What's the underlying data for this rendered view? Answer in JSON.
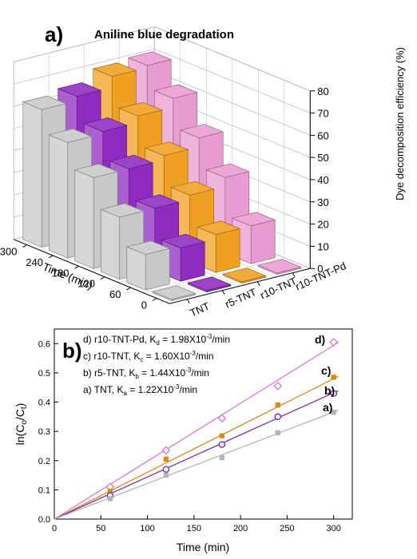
{
  "chart_data": [
    {
      "panel": "a)",
      "type": "bar",
      "title": "Aniline blue degradation",
      "zlabel": "Dye decomposition efficiency (%)",
      "xlabel": "Time (min)",
      "categories": [
        "0",
        "60",
        "120",
        "180",
        "240",
        "300"
      ],
      "zlim": [
        0,
        80
      ],
      "zticks": [
        "0",
        "10",
        "20",
        "30",
        "40",
        "50",
        "60",
        "70",
        "80"
      ],
      "series": [
        {
          "name": "TNT",
          "color": "#c8c8c8",
          "values": [
            0,
            16,
            28,
            41,
            52,
            62
          ]
        },
        {
          "name": "r5-TNT",
          "color": "#8f2bc0",
          "values": [
            0,
            15,
            28,
            41,
            53,
            64
          ]
        },
        {
          "name": "r10-TNT",
          "color": "#f0a020",
          "values": [
            0,
            17,
            30,
            43,
            56,
            69
          ]
        },
        {
          "name": "r10-TNT-Pd",
          "color": "#e89bd0",
          "values": [
            0,
            17,
            34,
            47,
            60,
            70
          ]
        }
      ]
    },
    {
      "panel": "b)",
      "type": "scatter",
      "xlabel": "Time (min)",
      "ylabel_main": "ln(C",
      "ylabel_sub1": "o",
      "ylabel_mid": "/C",
      "ylabel_sub2": "t",
      "ylabel_end": ")",
      "xlim": [
        0,
        320
      ],
      "ylim": [
        0,
        0.65
      ],
      "xticks": [
        "0",
        "50",
        "100",
        "150",
        "200",
        "250",
        "300"
      ],
      "yticks": [
        "0.0",
        "0.1",
        "0.2",
        "0.3",
        "0.4",
        "0.5",
        "0.6"
      ],
      "x": [
        60,
        120,
        180,
        240,
        300
      ],
      "series": [
        {
          "key": "d",
          "tag": "d)",
          "label": "d) r10-TNT-Pd, K",
          "sub": "d",
          "label_rest": "= 1.98X10",
          "sup": "-3",
          "unit": "/min",
          "color": "#d67fd1",
          "marker": "diamond",
          "values": [
            0.11,
            0.235,
            0.345,
            0.455,
            0.605
          ],
          "slope": 0.00198
        },
        {
          "key": "c",
          "tag": "c)",
          "label": "c) r10-TNT, K",
          "sub": "c",
          "label_rest": "= 1.60X10",
          "sup": "-3",
          "unit": "/min",
          "color": "#d98a18",
          "marker": "square",
          "values": [
            0.095,
            0.205,
            0.285,
            0.39,
            0.485
          ],
          "slope": 0.0016
        },
        {
          "key": "b",
          "tag": "b)",
          "label": "b) r5-TNT, K",
          "sub": "b",
          "label_rest": "= 1.44X10",
          "sup": "-3",
          "unit": "/min",
          "color": "#7a2bb5",
          "marker": "circle",
          "values": [
            0.08,
            0.17,
            0.255,
            0.35,
            0.43
          ],
          "slope": 0.00144
        },
        {
          "key": "a",
          "tag": "a)",
          "label": "a) TNT, K",
          "sub": "a",
          "label_rest": "= 1.22X10",
          "sup": "-3",
          "unit": "/min",
          "color": "#b3b3b3",
          "marker": "square",
          "values": [
            0.07,
            0.15,
            0.21,
            0.295,
            0.365
          ],
          "slope": 0.00122
        }
      ]
    }
  ]
}
